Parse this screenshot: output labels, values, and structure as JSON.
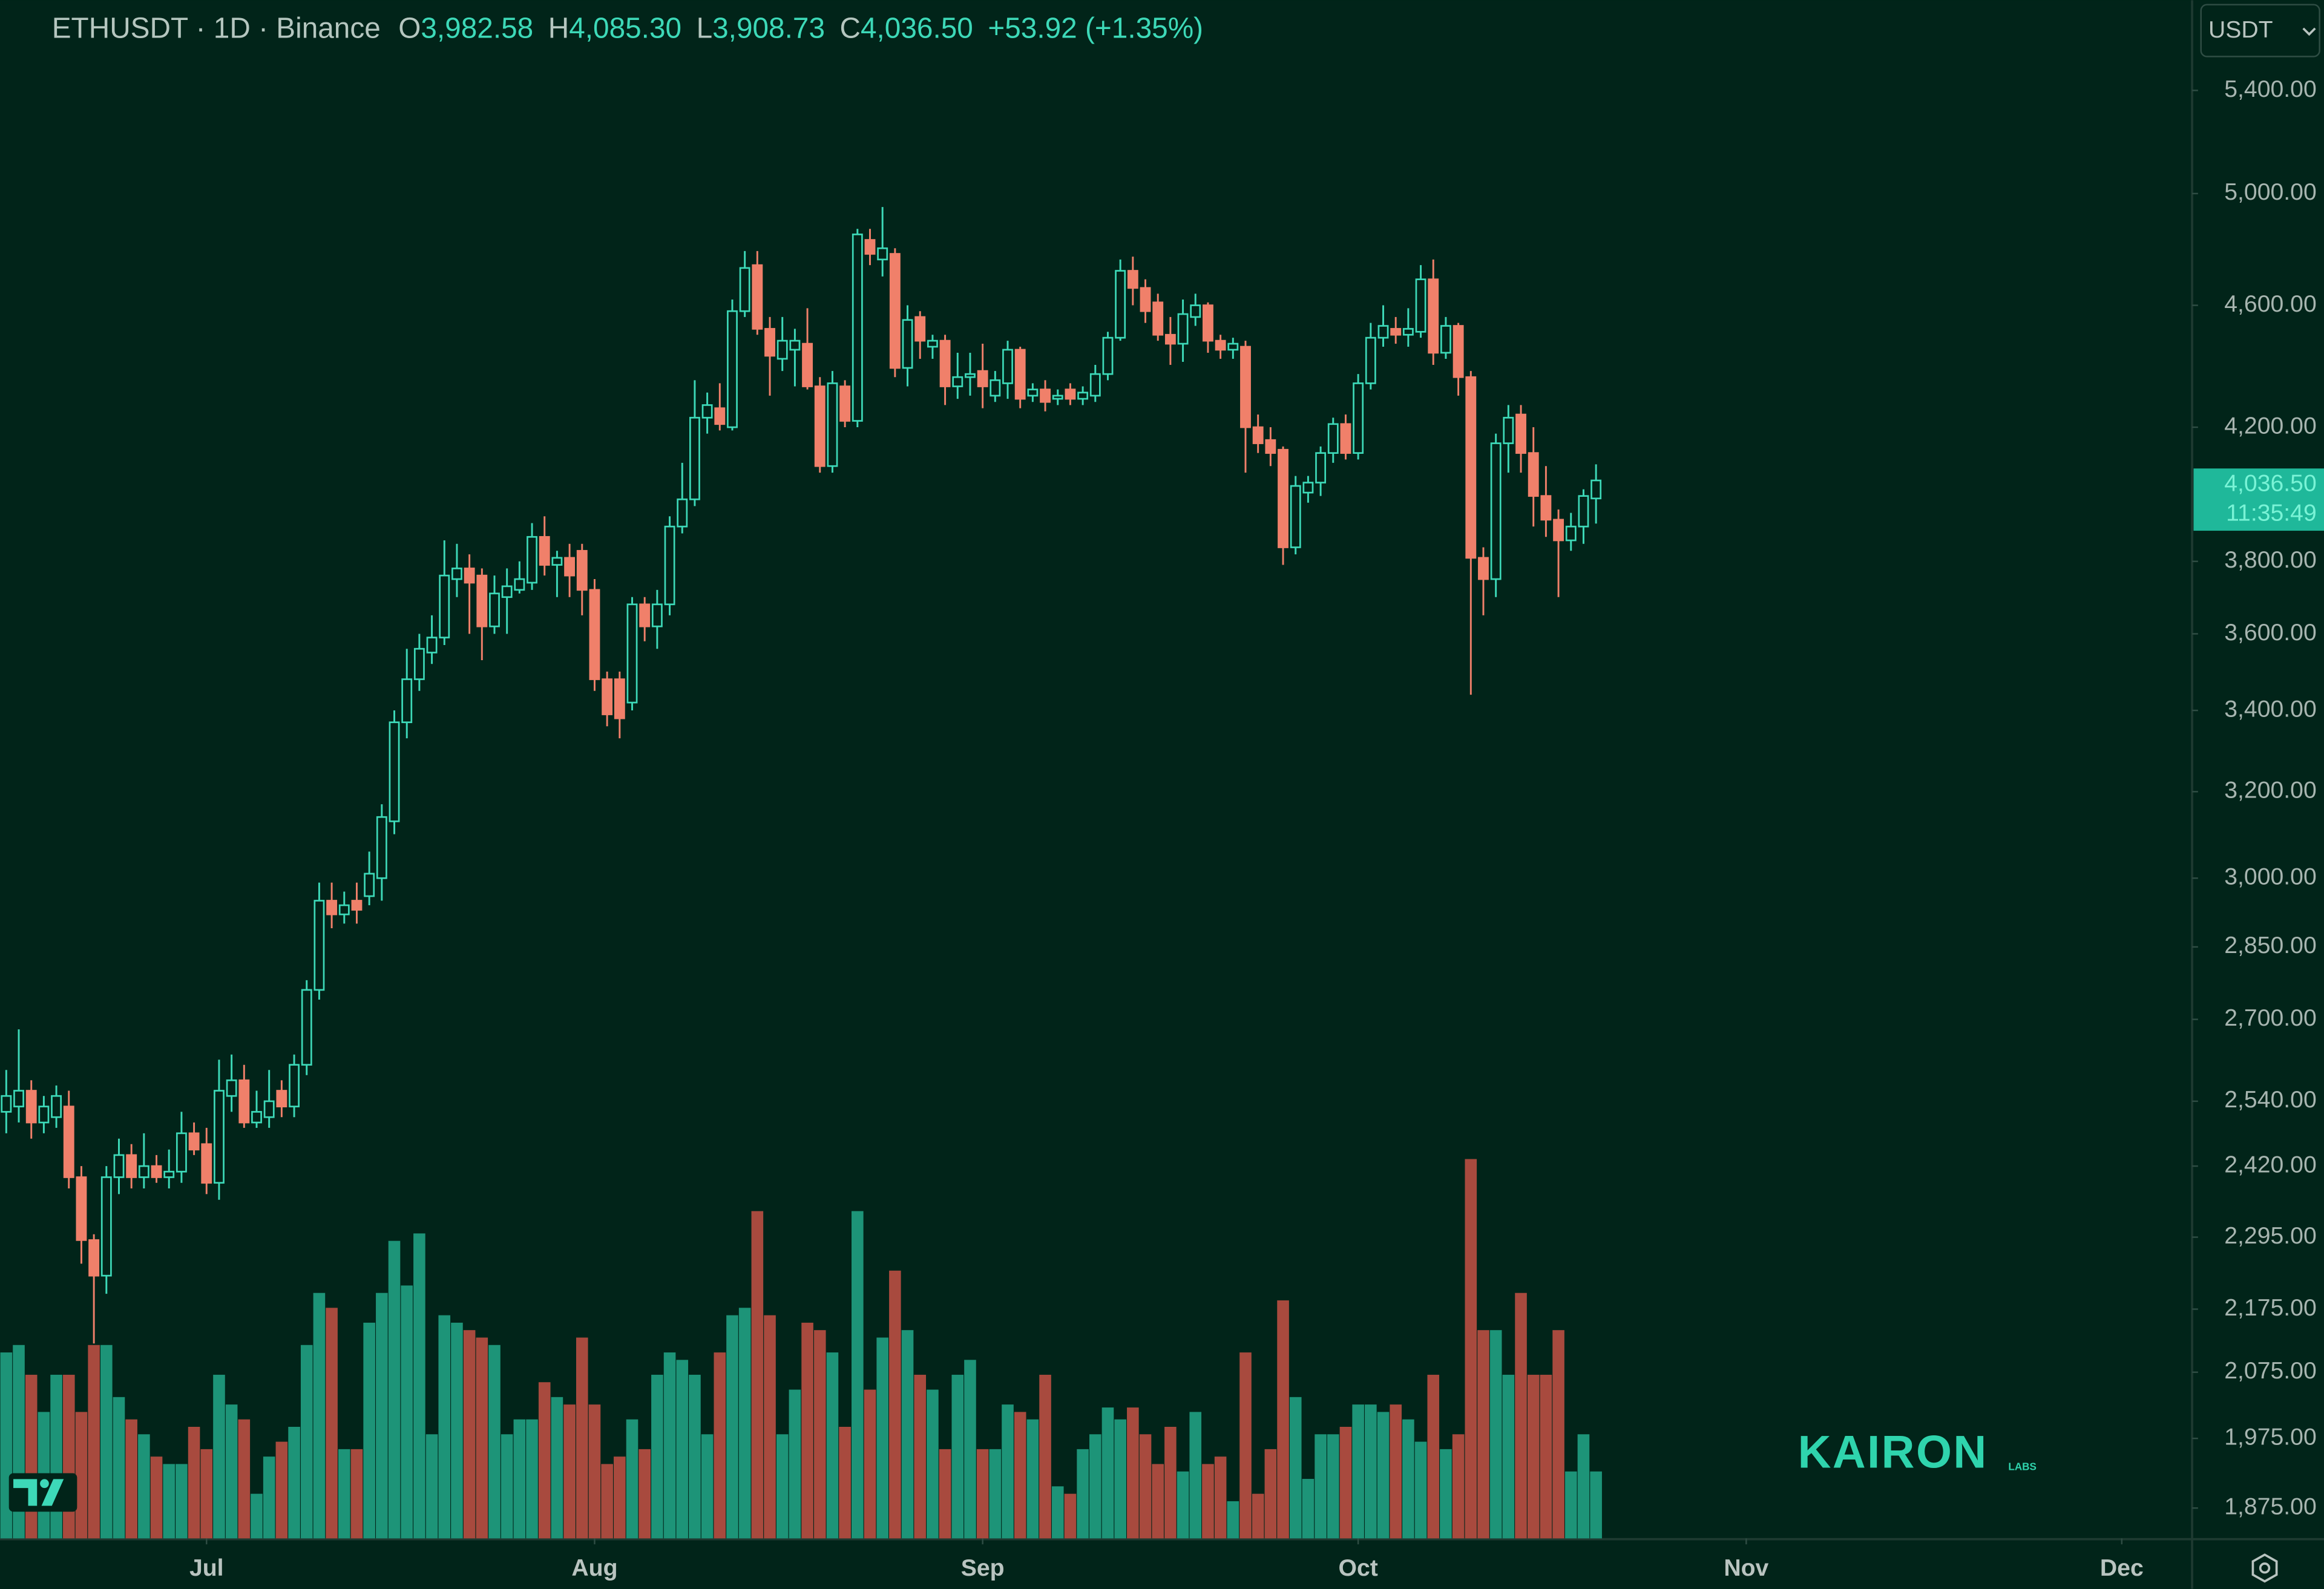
{
  "chart_data": {
    "type": "candlestick",
    "legend": {
      "title": "ETHUSDT · 1D · Binance",
      "items": [
        {
          "key": "O",
          "value": "3,982.58"
        },
        {
          "key": "H",
          "value": "4,085.30"
        },
        {
          "key": "L",
          "value": "3,908.73"
        },
        {
          "key": "C",
          "value": "4,036.50"
        }
      ],
      "change": "+53.92 (+1.35%)"
    },
    "currency": "USDT",
    "price_label": {
      "price": "4,036.50",
      "countdown": "11:35:49"
    },
    "watermark": {
      "name": "KAIRON",
      "sub": "LABS"
    },
    "log_y": true,
    "up_color": "#3dd9b8",
    "down_color": "#f0806a",
    "volume_up_color": "#1d9478",
    "volume_down_color": "#a84a3e",
    "xlim": [
      -0.5,
      174.5
    ],
    "xticks": [
      {
        "value": 16,
        "label": "Jul"
      },
      {
        "value": 47,
        "label": "Aug"
      },
      {
        "value": 78,
        "label": "Sep"
      },
      {
        "value": 108,
        "label": "Oct"
      },
      {
        "value": 139,
        "label": "Nov"
      },
      {
        "value": 169,
        "label": "Dec"
      }
    ],
    "ylim": [
      1833,
      5776
    ],
    "yticks": [
      {
        "value": 5400,
        "label": "5,400.00"
      },
      {
        "value": 5000,
        "label": "5,000.00"
      },
      {
        "value": 4600,
        "label": "4,600.00"
      },
      {
        "value": 4200,
        "label": "4,200.00"
      },
      {
        "value": 3800,
        "label": "3,800.00"
      },
      {
        "value": 3600,
        "label": "3,600.00"
      },
      {
        "value": 3400,
        "label": "3,400.00"
      },
      {
        "value": 3200,
        "label": "3,200.00"
      },
      {
        "value": 3000,
        "label": "3,000.00"
      },
      {
        "value": 2850,
        "label": "2,850.00"
      },
      {
        "value": 2700,
        "label": "2,700.00"
      },
      {
        "value": 2540,
        "label": "2,540.00"
      },
      {
        "value": 2420,
        "label": "2,420.00"
      },
      {
        "value": 2295,
        "label": "2,295.00"
      },
      {
        "value": 2175,
        "label": "2,175.00"
      },
      {
        "value": 2075,
        "label": "2,075.00"
      },
      {
        "value": 1975,
        "label": "1,975.00"
      },
      {
        "value": 1875,
        "label": "1,875.00"
      }
    ],
    "open": [
      2520,
      2530,
      2560,
      2500,
      2510,
      2530,
      2400,
      2290,
      2230,
      2400,
      2440,
      2400,
      2420,
      2400,
      2410,
      2480,
      2460,
      2390,
      2550,
      2580,
      2500,
      2510,
      2560,
      2530,
      2610,
      2760,
      2950,
      2920,
      2950,
      2960,
      3000,
      3130,
      3370,
      3480,
      3550,
      3590,
      3750,
      3780,
      3760,
      3620,
      3700,
      3720,
      3740,
      3870,
      3790,
      3810,
      3830,
      3720,
      3480,
      3480,
      3420,
      3680,
      3620,
      3680,
      3900,
      3980,
      4230,
      4260,
      4200,
      4580,
      4740,
      4520,
      4420,
      4450,
      4470,
      4330,
      4080,
      4330,
      4220,
      4830,
      4760,
      4780,
      4390,
      4560,
      4460,
      4480,
      4330,
      4360,
      4380,
      4300,
      4340,
      4450,
      4300,
      4320,
      4290,
      4320,
      4290,
      4300,
      4370,
      4490,
      4720,
      4660,
      4610,
      4500,
      4470,
      4560,
      4600,
      4480,
      4450,
      4460,
      4200,
      4160,
      4130,
      3840,
      4000,
      4030,
      4120,
      4210,
      4120,
      4340,
      4490,
      4520,
      4500,
      4510,
      4690,
      4440,
      4530,
      4360,
      3810,
      3750,
      4150,
      4240,
      4120,
      3990,
      3920,
      3860,
      3900,
      3982.58
    ],
    "high": [
      2600,
      2680,
      2580,
      2550,
      2570,
      2560,
      2420,
      2300,
      2420,
      2470,
      2460,
      2480,
      2440,
      2450,
      2520,
      2500,
      2490,
      2620,
      2630,
      2610,
      2560,
      2600,
      2580,
      2630,
      2780,
      2990,
      2990,
      2970,
      2990,
      3060,
      3170,
      3400,
      3560,
      3600,
      3650,
      3860,
      3850,
      3820,
      3780,
      3760,
      3780,
      3800,
      3910,
      3930,
      3830,
      3850,
      3850,
      3750,
      3500,
      3500,
      3700,
      3700,
      3720,
      3930,
      4090,
      4350,
      4310,
      4340,
      4620,
      4790,
      4790,
      4560,
      4560,
      4520,
      4590,
      4360,
      4380,
      4350,
      4870,
      4870,
      4950,
      4800,
      4600,
      4580,
      4500,
      4500,
      4440,
      4440,
      4470,
      4380,
      4480,
      4460,
      4340,
      4350,
      4320,
      4340,
      4330,
      4400,
      4510,
      4760,
      4770,
      4690,
      4640,
      4560,
      4620,
      4640,
      4610,
      4500,
      4490,
      4480,
      4240,
      4200,
      4140,
      4050,
      4050,
      4140,
      4230,
      4240,
      4370,
      4540,
      4600,
      4560,
      4590,
      4740,
      4760,
      4560,
      4540,
      4380,
      3840,
      4180,
      4270,
      4270,
      4200,
      4080,
      3950,
      3940,
      4010,
      4085.3
    ],
    "low": [
      2480,
      2500,
      2470,
      2480,
      2490,
      2380,
      2250,
      2120,
      2200,
      2370,
      2380,
      2380,
      2390,
      2380,
      2390,
      2440,
      2370,
      2360,
      2520,
      2490,
      2490,
      2490,
      2510,
      2510,
      2590,
      2740,
      2890,
      2900,
      2900,
      2940,
      2950,
      3100,
      3330,
      3450,
      3520,
      3570,
      3700,
      3600,
      3530,
      3600,
      3600,
      3710,
      3720,
      3760,
      3700,
      3700,
      3650,
      3450,
      3360,
      3330,
      3400,
      3580,
      3560,
      3650,
      3880,
      3960,
      4180,
      4190,
      4190,
      4560,
      4500,
      4300,
      4380,
      4330,
      4320,
      4060,
      4060,
      4200,
      4200,
      4740,
      4700,
      4360,
      4330,
      4420,
      4420,
      4270,
      4290,
      4300,
      4260,
      4280,
      4290,
      4260,
      4280,
      4250,
      4270,
      4270,
      4270,
      4280,
      4350,
      4480,
      4600,
      4540,
      4480,
      4400,
      4410,
      4530,
      4440,
      4420,
      4420,
      4060,
      4120,
      4080,
      3790,
      3820,
      3970,
      3990,
      4090,
      4100,
      4100,
      4320,
      4460,
      4470,
      4460,
      4490,
      4400,
      4420,
      4300,
      3440,
      3650,
      3700,
      4060,
      4060,
      3900,
      3870,
      3700,
      3830,
      3850,
      3908.73
    ],
    "close": [
      2550,
      2560,
      2500,
      2530,
      2550,
      2400,
      2290,
      2230,
      2400,
      2440,
      2400,
      2420,
      2400,
      2410,
      2480,
      2450,
      2390,
      2560,
      2580,
      2500,
      2520,
      2540,
      2530,
      2610,
      2760,
      2950,
      2920,
      2940,
      2930,
      3010,
      3140,
      3370,
      3480,
      3560,
      3590,
      3760,
      3780,
      3740,
      3620,
      3710,
      3730,
      3750,
      3870,
      3790,
      3810,
      3760,
      3720,
      3480,
      3390,
      3380,
      3680,
      3620,
      3680,
      3900,
      3980,
      4230,
      4270,
      4210,
      4580,
      4730,
      4520,
      4430,
      4480,
      4480,
      4330,
      4080,
      4340,
      4220,
      4850,
      4780,
      4800,
      4390,
      4550,
      4480,
      4480,
      4330,
      4360,
      4370,
      4330,
      4350,
      4450,
      4290,
      4320,
      4280,
      4300,
      4290,
      4310,
      4370,
      4490,
      4720,
      4660,
      4580,
      4500,
      4470,
      4570,
      4600,
      4480,
      4450,
      4470,
      4200,
      4150,
      4120,
      3840,
      4020,
      4030,
      4120,
      4210,
      4120,
      4340,
      4490,
      4530,
      4500,
      4520,
      4690,
      4440,
      4530,
      4360,
      3810,
      3750,
      4150,
      4230,
      4120,
      3990,
      3920,
      3860,
      3900,
      3990,
      4036.5
    ],
    "volume": [
      125,
      130,
      110,
      85,
      110,
      110,
      85,
      130,
      130,
      95,
      80,
      70,
      55,
      50,
      50,
      75,
      60,
      110,
      90,
      80,
      30,
      55,
      65,
      75,
      130,
      165,
      155,
      60,
      60,
      145,
      165,
      200,
      170,
      205,
      70,
      150,
      145,
      140,
      135,
      130,
      70,
      80,
      80,
      105,
      95,
      90,
      135,
      90,
      50,
      55,
      80,
      60,
      110,
      125,
      120,
      110,
      70,
      125,
      150,
      155,
      220,
      150,
      70,
      100,
      145,
      140,
      125,
      75,
      220,
      100,
      135,
      180,
      140,
      110,
      100,
      60,
      110,
      120,
      60,
      60,
      90,
      85,
      80,
      110,
      35,
      30,
      60,
      70,
      88,
      80,
      88,
      70,
      50,
      75,
      45,
      85,
      50,
      55,
      25,
      125,
      30,
      60,
      160,
      95,
      40,
      70,
      70,
      75,
      90,
      90,
      85,
      90,
      80,
      65,
      110,
      60,
      70,
      255,
      140,
      140,
      110,
      165,
      110,
      110,
      140,
      45,
      70,
      45
    ]
  }
}
